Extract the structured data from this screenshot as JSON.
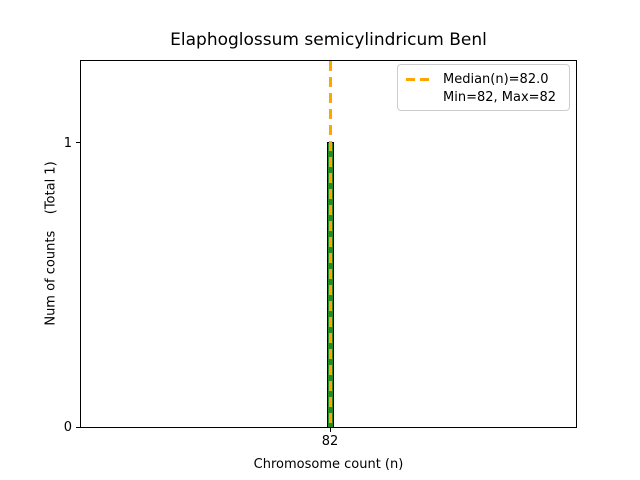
{
  "title": "Elaphoglossum semicylindricum Benl",
  "axes": {
    "xlabel": "Chromosome count (n)",
    "ylabel": "Num of counts    (Total 1)",
    "ytick_top": "1",
    "ytick_bottom": "0",
    "xtick": "82"
  },
  "legend": {
    "median_label": "Median(n)=82.0",
    "minmax_label": "Min=82, Max=82"
  },
  "colors": {
    "background": "#FFFFFF",
    "axis": "#000000",
    "bar_fill": "#228B22",
    "bar_edge": "#000000",
    "median_line": "#FFA500",
    "legend_border": "#CCCCCC"
  },
  "chart_data": {
    "type": "bar",
    "title": "Elaphoglossum semicylindricum Benl",
    "xlabel": "Chromosome count (n)",
    "ylabel": "Num of counts    (Total 1)",
    "categories": [
      82
    ],
    "values": [
      1
    ],
    "xticks": [
      82
    ],
    "yticks": [
      0,
      1
    ],
    "ylim": [
      0,
      1.29
    ],
    "total_counts": 1,
    "median_n": 82.0,
    "min_n": 82,
    "max_n": 82,
    "bar_color": "#228B22",
    "bar_edge_color": "#000000",
    "median_line_color": "#FFA500",
    "median_line_style": "dashed",
    "legend_position": "upper right",
    "grid": false,
    "legend_entries": [
      "Median(n)=82.0",
      "Min=82, Max=82"
    ]
  }
}
